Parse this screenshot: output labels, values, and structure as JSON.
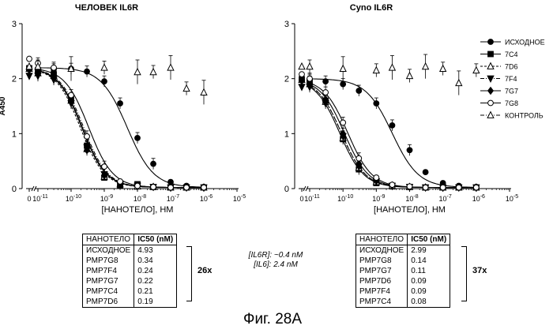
{
  "chart_data": [
    {
      "type": "line",
      "title": "ЧЕЛОВЕК IL6R",
      "xlabel": "[НАНОТЕЛО], НМ",
      "ylabel": "A450",
      "xscale": "log",
      "xlim": [
        1e-11,
        1e-05
      ],
      "ylim": [
        0,
        3
      ],
      "yticks": [
        "0",
        "1",
        "2",
        "3"
      ],
      "xticks": [
        "0",
        "10-11",
        "10-10",
        "10-9",
        "10-8",
        "10-7",
        "10-6",
        "10-5"
      ],
      "series": [
        {
          "name": "ИСХОДНОЕ",
          "marker": "filled-circle",
          "line": "solid",
          "top": 2.2,
          "bottom": 0.02,
          "ic50": 4.93e-09,
          "hill": 1.1,
          "x": [
            1e-11,
            3e-11,
            1e-10,
            3e-10,
            1e-09,
            3e-09,
            1e-08,
            3e-08,
            1e-07,
            3e-07,
            1e-06
          ],
          "y": [
            2.18,
            2.17,
            2.18,
            2.13,
            1.95,
            1.55,
            0.92,
            0.45,
            0.12,
            0.05,
            0.03
          ]
        },
        {
          "name": "7C4",
          "marker": "filled-square",
          "line": "solid",
          "top": 2.2,
          "bottom": 0.02,
          "ic50": 2.1e-10,
          "hill": 1.2,
          "x": [
            1e-11,
            3e-11,
            1e-10,
            3e-10,
            1e-09,
            3e-09,
            1e-08,
            3e-08,
            1e-07,
            3e-07,
            1e-06
          ],
          "y": [
            2.15,
            2.08,
            1.62,
            0.78,
            0.2,
            0.06,
            0.08,
            0.03,
            0.02,
            0.02,
            0.02
          ]
        },
        {
          "name": "7D6",
          "marker": "open-triangle-up",
          "line": "dashed",
          "top": 2.2,
          "bottom": 0.02,
          "ic50": 1.9e-10,
          "hill": 1.2,
          "x": [
            1e-11,
            3e-11,
            1e-10,
            3e-10,
            1e-09,
            3e-09,
            1e-08,
            3e-08,
            1e-07,
            3e-07,
            1e-06
          ],
          "y": [
            2.1,
            2.05,
            1.6,
            0.72,
            0.22,
            0.08,
            0.04,
            0.03,
            0.02,
            0.02,
            0.02
          ]
        },
        {
          "name": "7F4",
          "marker": "filled-triangle-down",
          "line": "dashdot",
          "top": 2.2,
          "bottom": 0.02,
          "ic50": 2.4e-10,
          "hill": 1.2,
          "x": [
            1e-11,
            3e-11,
            1e-10,
            3e-10,
            1e-09,
            3e-09,
            1e-08,
            3e-08,
            1e-07,
            3e-07,
            1e-06
          ],
          "y": [
            2.05,
            1.98,
            1.55,
            0.75,
            0.26,
            0.07,
            0.05,
            0.03,
            0.02,
            0.02,
            0.02
          ]
        },
        {
          "name": "7G7",
          "marker": "filled-diamond",
          "line": "solid",
          "top": 2.2,
          "bottom": 0.02,
          "ic50": 2.2e-10,
          "hill": 1.2,
          "x": [
            1e-11,
            3e-11,
            1e-10,
            3e-10,
            1e-09,
            3e-09,
            1e-08,
            3e-08,
            1e-07,
            3e-07,
            1e-06
          ],
          "y": [
            2.12,
            2.02,
            1.58,
            0.7,
            0.24,
            0.06,
            0.04,
            0.03,
            0.02,
            0.02,
            0.02
          ]
        },
        {
          "name": "7G8",
          "marker": "open-circle",
          "line": "solid",
          "top": 2.2,
          "bottom": 0.02,
          "ic50": 3.4e-10,
          "hill": 1.2,
          "x": [
            1e-11,
            3e-11,
            1e-10,
            3e-10,
            1e-09,
            3e-09,
            1e-08,
            3e-08,
            1e-07,
            3e-07,
            1e-06
          ],
          "y": [
            2.28,
            2.2,
            1.7,
            0.95,
            0.4,
            0.13,
            0.05,
            0.03,
            0.02,
            0.02,
            0.02
          ]
        },
        {
          "name": "КОНТРОЛЬ",
          "marker": "open-triangle-up",
          "line": "none",
          "x": [
            1e-11,
            1e-10,
            1e-09,
            1e-08,
            3e-08,
            1e-07,
            3e-07,
            1e-06
          ],
          "y": [
            2.22,
            2.18,
            2.2,
            2.12,
            2.12,
            2.2,
            1.82,
            1.75
          ]
        }
      ]
    },
    {
      "type": "line",
      "title": "Cyno IL6R",
      "xlabel": "[НАНОТЕЛО], НМ",
      "ylabel": "",
      "xscale": "log",
      "xlim": [
        1e-11,
        1e-05
      ],
      "ylim": [
        0,
        3
      ],
      "yticks": [
        "0",
        "1",
        "2",
        "3"
      ],
      "xticks": [
        "0",
        "10-11",
        "10-10",
        "10-9",
        "10-8",
        "10-7",
        "10-6",
        "10-5"
      ],
      "series": [
        {
          "name": "ИСХОДНОЕ",
          "marker": "filled-circle",
          "line": "solid",
          "top": 2.0,
          "bottom": 0.02,
          "ic50": 2.99e-09,
          "hill": 1.1,
          "x": [
            1e-11,
            3e-11,
            1e-10,
            3e-10,
            1e-09,
            3e-09,
            1e-08,
            3e-08,
            1e-07,
            3e-07,
            1e-06
          ],
          "y": [
            1.98,
            1.95,
            1.9,
            1.78,
            1.55,
            1.15,
            0.7,
            0.3,
            0.1,
            0.05,
            0.03
          ]
        },
        {
          "name": "7C4",
          "marker": "filled-square",
          "line": "solid",
          "top": 2.0,
          "bottom": 0.02,
          "ic50": 8e-11,
          "hill": 1.2,
          "x": [
            1e-11,
            3e-11,
            1e-10,
            3e-10,
            1e-09,
            3e-09,
            1e-08,
            3e-08,
            1e-07,
            3e-07,
            1e-06
          ],
          "y": [
            1.95,
            1.6,
            0.9,
            0.35,
            0.1,
            0.04,
            0.03,
            0.02,
            0.02,
            0.02,
            0.02
          ]
        },
        {
          "name": "7D6",
          "marker": "open-triangle-up",
          "line": "dashed",
          "top": 2.0,
          "bottom": 0.02,
          "ic50": 9e-11,
          "hill": 1.2,
          "x": [
            1e-11,
            3e-11,
            1e-10,
            3e-10,
            1e-09,
            3e-09,
            1e-08,
            3e-08,
            1e-07,
            3e-07,
            1e-06
          ],
          "y": [
            1.9,
            1.58,
            0.92,
            0.38,
            0.12,
            0.05,
            0.03,
            0.02,
            0.02,
            0.02,
            0.02
          ]
        },
        {
          "name": "7F4",
          "marker": "filled-triangle-down",
          "line": "dashdot",
          "top": 2.0,
          "bottom": 0.02,
          "ic50": 9e-11,
          "hill": 1.2,
          "x": [
            1e-11,
            3e-11,
            1e-10,
            3e-10,
            1e-09,
            3e-09,
            1e-08,
            3e-08,
            1e-07,
            3e-07,
            1e-06
          ],
          "y": [
            1.85,
            1.55,
            0.95,
            0.4,
            0.13,
            0.05,
            0.03,
            0.02,
            0.02,
            0.02,
            0.02
          ]
        },
        {
          "name": "7G7",
          "marker": "filled-diamond",
          "line": "solid",
          "top": 2.0,
          "bottom": 0.02,
          "ic50": 1.1e-10,
          "hill": 1.2,
          "x": [
            1e-11,
            3e-11,
            1e-10,
            3e-10,
            1e-09,
            3e-09,
            1e-08,
            3e-08,
            1e-07,
            3e-07,
            1e-06
          ],
          "y": [
            1.92,
            1.62,
            1.0,
            0.45,
            0.15,
            0.06,
            0.03,
            0.02,
            0.02,
            0.02,
            0.02
          ]
        },
        {
          "name": "7G8",
          "marker": "open-circle",
          "line": "solid",
          "top": 2.0,
          "bottom": 0.02,
          "ic50": 1.4e-10,
          "hill": 1.2,
          "x": [
            1e-11,
            3e-11,
            1e-10,
            3e-10,
            1e-09,
            3e-09,
            1e-08,
            3e-08,
            1e-07,
            3e-07,
            1e-06
          ],
          "y": [
            2.0,
            1.75,
            1.2,
            0.55,
            0.2,
            0.07,
            0.04,
            0.02,
            0.02,
            0.02,
            0.02
          ]
        },
        {
          "name": "КОНТРОЛЬ",
          "marker": "open-triangle-up",
          "line": "none",
          "x": [
            1e-11,
            1e-10,
            1e-09,
            3e-09,
            1e-08,
            3e-08,
            1e-07,
            3e-07,
            1e-06
          ],
          "y": [
            2.22,
            2.18,
            2.15,
            2.2,
            2.05,
            2.22,
            2.18,
            1.92,
            2.15
          ]
        }
      ]
    }
  ],
  "legend": [
    {
      "label": "ИСХОДНОЕ",
      "marker": "filled-circle",
      "line": "solid"
    },
    {
      "label": "7C4",
      "marker": "filled-square",
      "line": "solid"
    },
    {
      "label": "7D6",
      "marker": "open-triangle-up",
      "line": "dashed"
    },
    {
      "label": "7F4",
      "marker": "filled-triangle-down",
      "line": "dashdot"
    },
    {
      "label": "7G7",
      "marker": "filled-diamond",
      "line": "solid"
    },
    {
      "label": "7G8",
      "marker": "open-circle",
      "line": "solid"
    },
    {
      "label": "КОНТРОЛЬ",
      "marker": "open-triangle-up",
      "line": "dashdot"
    }
  ],
  "tables": [
    {
      "header": [
        "НАНОТЕЛО",
        "IC50 (nM)"
      ],
      "rows": [
        [
          "ИСХОДНОЕ",
          "4.93"
        ],
        [
          "PMP7G8",
          "0.34"
        ],
        [
          "PMP7F4",
          "0.24"
        ],
        [
          "PMP7G7",
          "0.22"
        ],
        [
          "PMP7C4",
          "0.21"
        ],
        [
          "PMP7D6",
          "0.19"
        ]
      ],
      "fold": "26x"
    },
    {
      "header": [
        "НАНОТЕЛО",
        "IC50 (nM)"
      ],
      "rows": [
        [
          "ИСХОДНОЕ",
          "2.99"
        ],
        [
          "PMP7G8",
          "0.14"
        ],
        [
          "PMP7G7",
          "0.11"
        ],
        [
          "PMP7D6",
          "0.09"
        ],
        [
          "PMP7F4",
          "0.09"
        ],
        [
          "PMP7C4",
          "0.08"
        ]
      ],
      "fold": "37x"
    }
  ],
  "notes": [
    "[IL6R]: ~0.4 nM",
    "[IL6]: 2.4 nM"
  ],
  "caption": "Фиг. 28А"
}
